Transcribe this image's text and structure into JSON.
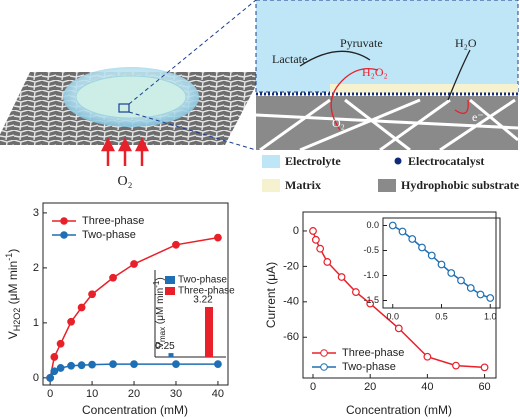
{
  "schematic": {
    "labels": {
      "lactate": "Lactate",
      "pyruvate": "Pyruvate",
      "water": "H₂O",
      "peroxide": "H₂O₂",
      "oxygen_in": "O₂",
      "electron": "e⁻",
      "oxygen_left": "O₂"
    },
    "legend": [
      "Electrolyte",
      "Electrocatalyst",
      "Matrix",
      "Hydrophobic substrate"
    ]
  },
  "chart_data": [
    {
      "type": "line",
      "ylabel_parts": [
        "V",
        "H2O2",
        " (μM min",
        "-1",
        ")"
      ],
      "xlabel": "Concentration (mM)",
      "xlim": [
        -1.7,
        42.4
      ],
      "ylim": [
        -0.13,
        3.18
      ],
      "xticks": [
        0,
        10,
        20,
        30,
        40
      ],
      "yticks": [
        0,
        1,
        2,
        3
      ],
      "series": [
        {
          "name": "Three-phase",
          "color": "#e8202a",
          "x": [
            0,
            1,
            2.5,
            5,
            7.5,
            10,
            15,
            20,
            30,
            40
          ],
          "values": [
            0,
            0.38,
            0.62,
            1.02,
            1.28,
            1.52,
            1.82,
            2.07,
            2.42,
            2.55
          ]
        },
        {
          "name": "Two-phase",
          "color": "#1f6fb4",
          "x": [
            0,
            1,
            2.5,
            5,
            7.5,
            10,
            15,
            20,
            30,
            40
          ],
          "values": [
            0,
            0.12,
            0.18,
            0.22,
            0.23,
            0.24,
            0.25,
            0.25,
            0.25,
            0.25
          ]
        }
      ],
      "inset": {
        "type": "bar",
        "ylabel_parts": [
          "V",
          "max",
          " (μM min",
          "-1",
          ")"
        ],
        "ylim": [
          0,
          5.6
        ],
        "categories": [
          "Two-phase",
          "Three-phase"
        ],
        "values": [
          0.25,
          3.22
        ],
        "colors": [
          "#1f6fb4",
          "#e8202a"
        ]
      }
    },
    {
      "type": "line",
      "ylabel": "Current (μA)",
      "xlabel": "Concentration (mM)",
      "xlim": [
        -3.5,
        64
      ],
      "ylim": [
        -83,
        10.7
      ],
      "xticks": [
        0,
        20,
        40,
        60
      ],
      "yticks": [
        0,
        -20,
        -40,
        -60
      ],
      "series": [
        {
          "name": "Three-phase",
          "color": "#e8202a",
          "x": [
            0,
            1,
            2.5,
            5,
            10,
            15,
            20,
            30,
            40,
            50,
            60
          ],
          "values": [
            0,
            -5,
            -10,
            -17.5,
            -26,
            -34.5,
            -41,
            -55,
            -71,
            -76,
            -77
          ]
        }
      ],
      "inset": {
        "type": "line",
        "xlim": [
          -0.1,
          1.1
        ],
        "ylim": [
          -1.65,
          0.15
        ],
        "xticks": [
          {
            "value": 0,
            "label": "0.0"
          },
          {
            "value": 0.5,
            "label": "0.5"
          },
          {
            "value": 1,
            "label": "1.0"
          }
        ],
        "yticks": [
          {
            "value": 0,
            "label": "0.0"
          },
          -0.5,
          {
            "value": -1,
            "label": "-1.0"
          },
          -1.5
        ],
        "series": [
          {
            "name": "Two-phase",
            "color": "#1f6fb4",
            "x": [
              0,
              0.1,
              0.2,
              0.3,
              0.4,
              0.5,
              0.6,
              0.7,
              0.8,
              0.9,
              1.0
            ],
            "values": [
              0,
              -0.12,
              -0.27,
              -0.44,
              -0.6,
              -0.78,
              -0.95,
              -1.1,
              -1.25,
              -1.38,
              -1.45
            ]
          }
        ]
      }
    }
  ]
}
